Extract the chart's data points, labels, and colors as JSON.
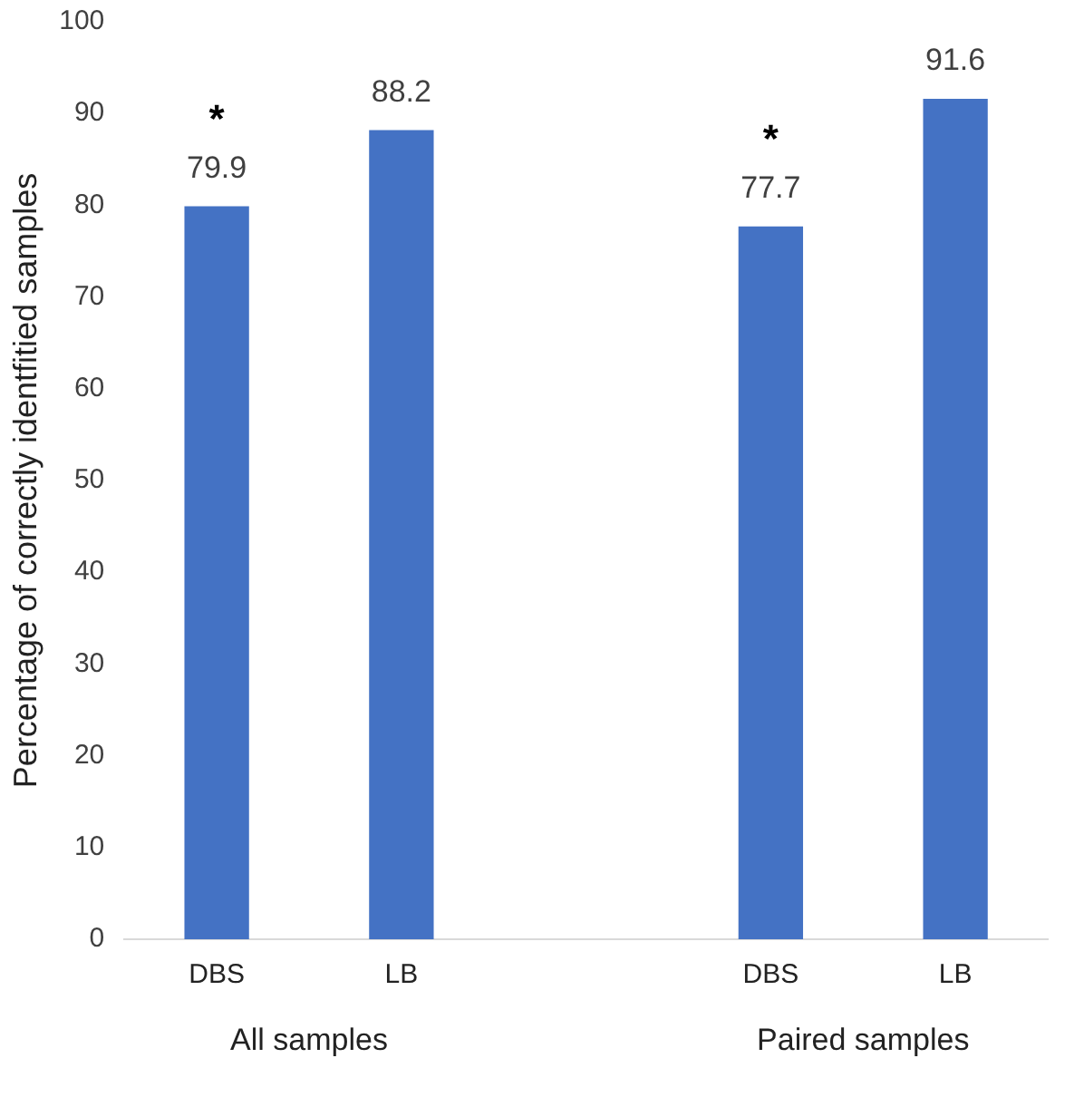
{
  "chart_data": {
    "type": "bar",
    "ylabel": "Percentage of correctly identfitied samples",
    "categories": [
      "DBS",
      "LB",
      null,
      "DBS",
      "LB"
    ],
    "values": [
      79.9,
      88.2,
      null,
      77.7,
      91.6
    ],
    "color": "#4472c4",
    "ylim": [
      0,
      100
    ],
    "yticks": [
      0,
      10,
      20,
      30,
      40,
      50,
      60,
      70,
      80,
      90,
      100
    ],
    "grid": false,
    "data_labels": true,
    "annotations": [
      "*",
      "*",
      "All samples",
      "Paired samples"
    ]
  }
}
